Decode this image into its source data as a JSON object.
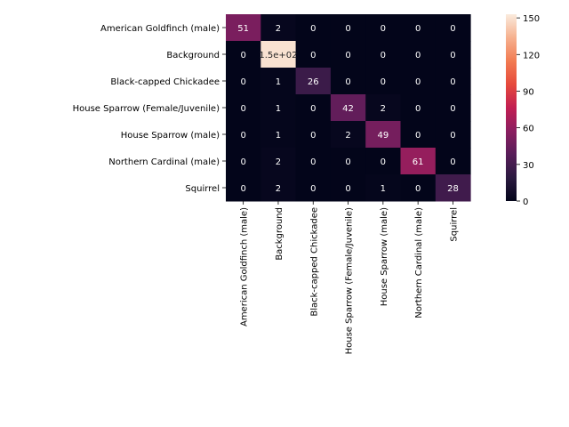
{
  "chart_data": {
    "type": "heatmap",
    "title": "",
    "xlabel": "",
    "ylabel": "",
    "row_labels": [
      "American Goldfinch (male)",
      "Background",
      "Black-capped Chickadee",
      "House Sparrow (Female/Juvenile)",
      "House Sparrow (male)",
      "Northern Cardinal (male)",
      "Squirrel"
    ],
    "col_labels": [
      "American Goldfinch (male)",
      "Background",
      "Black-capped Chickadee",
      "House Sparrow (Female/Juvenile)",
      "House Sparrow (male)",
      "Northern Cardinal (male)",
      "Squirrel"
    ],
    "values": [
      [
        51,
        2,
        0,
        0,
        0,
        0,
        0
      ],
      [
        0,
        150,
        0,
        0,
        0,
        0,
        0
      ],
      [
        0,
        1,
        26,
        0,
        0,
        0,
        0
      ],
      [
        0,
        1,
        0,
        42,
        2,
        0,
        0
      ],
      [
        0,
        1,
        0,
        2,
        49,
        0,
        0
      ],
      [
        0,
        2,
        0,
        0,
        0,
        61,
        0
      ],
      [
        0,
        2,
        0,
        0,
        1,
        0,
        28
      ]
    ],
    "cell_labels": [
      [
        "51",
        "2",
        "0",
        "0",
        "0",
        "0",
        "0"
      ],
      [
        "0",
        "1.5e+02",
        "0",
        "0",
        "0",
        "0",
        "0"
      ],
      [
        "0",
        "1",
        "26",
        "0",
        "0",
        "0",
        "0"
      ],
      [
        "0",
        "1",
        "0",
        "42",
        "2",
        "0",
        "0"
      ],
      [
        "0",
        "1",
        "0",
        "2",
        "49",
        "0",
        "0"
      ],
      [
        "0",
        "2",
        "0",
        "0",
        "0",
        "61",
        "0"
      ],
      [
        "0",
        "2",
        "0",
        "0",
        "1",
        "0",
        "28"
      ]
    ],
    "colorbar": {
      "range": [
        0,
        153
      ],
      "ticks": [
        0,
        30,
        60,
        90,
        120,
        150
      ],
      "colormap": "rocket"
    },
    "grid": false
  }
}
